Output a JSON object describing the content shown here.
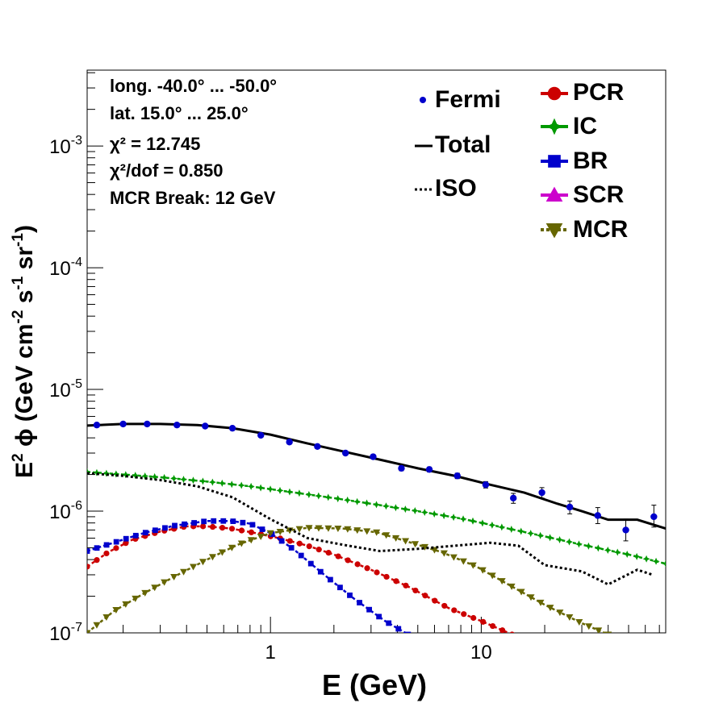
{
  "chart_data": {
    "type": "line",
    "xlabel": "E (GeV)",
    "ylabel": "E² ϕ (GeV cm⁻² s⁻¹ sr⁻¹)",
    "xscale": "log",
    "yscale": "log",
    "xlim": [
      0.135,
      75
    ],
    "ylim": [
      1e-07,
      0.0042
    ],
    "x_tick_labels": [
      "1",
      "10"
    ],
    "y_tick_labels": [
      "10^-7",
      "10^-6",
      "10^-5",
      "10^-4",
      "10^-3"
    ],
    "annotations": [
      "long. -40.0° ... -50.0°",
      "lat. 15.0° ... 25.0°",
      "χ² = 12.745",
      "χ²/dof = 0.850",
      "MCR Break: 12 GeV"
    ],
    "legend_position": "top-right",
    "series": [
      {
        "name": "Fermi",
        "style": "points",
        "color": "#0000cc",
        "x": [
          0.15,
          0.2,
          0.26,
          0.36,
          0.49,
          0.66,
          0.9,
          1.23,
          1.67,
          2.27,
          3.07,
          4.18,
          5.67,
          7.7,
          10.5,
          14.2,
          19.4,
          26.3,
          35.7,
          48.5,
          65.9
        ],
        "y": [
          5.1e-06,
          5.2e-06,
          5.2e-06,
          5.1e-06,
          5e-06,
          4.8e-06,
          4.2e-06,
          3.7e-06,
          3.4e-06,
          3e-06,
          2.8e-06,
          2.25e-06,
          2.2e-06,
          1.95e-06,
          1.65e-06,
          1.28e-06,
          1.42e-06,
          1.08e-06,
          9.2e-07,
          7e-07,
          9e-07
        ],
        "y_err_lo": [
          1e-07,
          1e-07,
          1e-07,
          1e-07,
          1e-07,
          1e-07,
          1e-07,
          1e-07,
          1e-07,
          1e-07,
          1e-07,
          1e-07,
          1e-07,
          1e-07,
          1e-07,
          1.2e-07,
          1.4e-07,
          1.3e-07,
          1.3e-07,
          1.3e-07,
          1.6e-07
        ],
        "y_err_hi": [
          1e-07,
          1e-07,
          1e-07,
          1e-07,
          1e-07,
          1e-07,
          1e-07,
          1e-07,
          1e-07,
          1e-07,
          1e-07,
          1e-07,
          1e-07,
          1e-07,
          1e-07,
          1.2e-07,
          1.4e-07,
          1.3e-07,
          1.5e-07,
          1.6e-07,
          2.2e-07
        ]
      },
      {
        "name": "Total",
        "style": "line",
        "color": "#000000",
        "x": [
          0.135,
          0.2,
          0.3,
          0.45,
          0.66,
          1.0,
          1.5,
          2.2,
          3.3,
          5.0,
          7.5,
          11,
          16,
          23,
          30,
          40,
          55,
          75
        ],
        "y": [
          5.05e-06,
          5.2e-06,
          5.2e-06,
          5.1e-06,
          4.8e-06,
          4.25e-06,
          3.6e-06,
          3.1e-06,
          2.65e-06,
          2.25e-06,
          1.95e-06,
          1.65e-06,
          1.42e-06,
          1.15e-06,
          1e-06,
          8.5e-07,
          8.5e-07,
          7.2e-07
        ]
      },
      {
        "name": "ISO",
        "style": "dotted",
        "color": "#000000",
        "x": [
          0.135,
          0.2,
          0.3,
          0.45,
          0.66,
          1.0,
          1.5,
          2.2,
          3.3,
          5.0,
          7.5,
          11,
          15,
          20,
          30,
          40,
          55,
          65
        ],
        "y": [
          2.05e-06,
          1.95e-06,
          1.8e-06,
          1.6e-06,
          1.3e-06,
          8.6e-07,
          6e-07,
          5.3e-07,
          4.7e-07,
          4.9e-07,
          5.2e-07,
          5.5e-07,
          5.2e-07,
          3.6e-07,
          3.2e-07,
          2.5e-07,
          3.3e-07,
          3e-07
        ]
      },
      {
        "name": "PCR",
        "style": "markers-line",
        "color": "#cc0000",
        "x": [
          0.135,
          0.17,
          0.22,
          0.3,
          0.4,
          0.5,
          0.65,
          0.85,
          1.1,
          1.5,
          2.0,
          3.0,
          4.5,
          7.0,
          10,
          14
        ],
        "y": [
          3.5e-07,
          4.6e-07,
          5.8e-07,
          6.8e-07,
          7.5e-07,
          7.5e-07,
          7.2e-07,
          6.6e-07,
          6e-07,
          5.2e-07,
          4.4e-07,
          3.3e-07,
          2.4e-07,
          1.6e-07,
          1.25e-07,
          9.7e-08
        ]
      },
      {
        "name": "IC",
        "style": "markers-line",
        "color": "#009900",
        "x": [
          0.135,
          0.2,
          0.3,
          0.5,
          0.8,
          1.2,
          2.0,
          3.0,
          5.0,
          8.0,
          12,
          20,
          30,
          50,
          75
        ],
        "y": [
          2.1e-06,
          2e-06,
          1.9e-06,
          1.75e-06,
          1.6e-06,
          1.45e-06,
          1.28e-06,
          1.15e-06,
          1e-06,
          8.7e-07,
          7.5e-07,
          6.2e-07,
          5.3e-07,
          4.4e-07,
          3.7e-07
        ]
      },
      {
        "name": "BR",
        "style": "markers-line",
        "color": "#0000cc",
        "x": [
          0.135,
          0.18,
          0.25,
          0.35,
          0.5,
          0.65,
          0.8,
          1.0,
          1.3,
          1.8,
          2.5,
          3.5,
          4.5
        ],
        "y": [
          4.7e-07,
          5.5e-07,
          6.6e-07,
          7.6e-07,
          8.3e-07,
          8.3e-07,
          7.9e-07,
          6.6e-07,
          4.8e-07,
          3e-07,
          1.9e-07,
          1.25e-07,
          9.7e-08
        ]
      },
      {
        "name": "SCR",
        "style": "markers-line",
        "color": "#cc00cc",
        "x": [],
        "y": []
      },
      {
        "name": "MCR",
        "style": "markers-line",
        "color": "#666600",
        "x": [
          0.135,
          0.18,
          0.25,
          0.35,
          0.5,
          0.7,
          1.0,
          1.5,
          2.2,
          3.2,
          4.5,
          6.5,
          9.5,
          14,
          20,
          30,
          40
        ],
        "y": [
          1e-07,
          1.5e-07,
          2.1e-07,
          2.9e-07,
          4e-07,
          5.3e-07,
          6.6e-07,
          7.3e-07,
          7.2e-07,
          6.7e-07,
          5.6e-07,
          4.6e-07,
          3.5e-07,
          2.4e-07,
          1.7e-07,
          1.2e-07,
          9.7e-08
        ]
      }
    ]
  },
  "legend": {
    "fermi": "Fermi",
    "total": "Total",
    "iso": "ISO",
    "pcr": "PCR",
    "ic": "IC",
    "br": "BR",
    "scr": "SCR",
    "mcr": "MCR"
  }
}
